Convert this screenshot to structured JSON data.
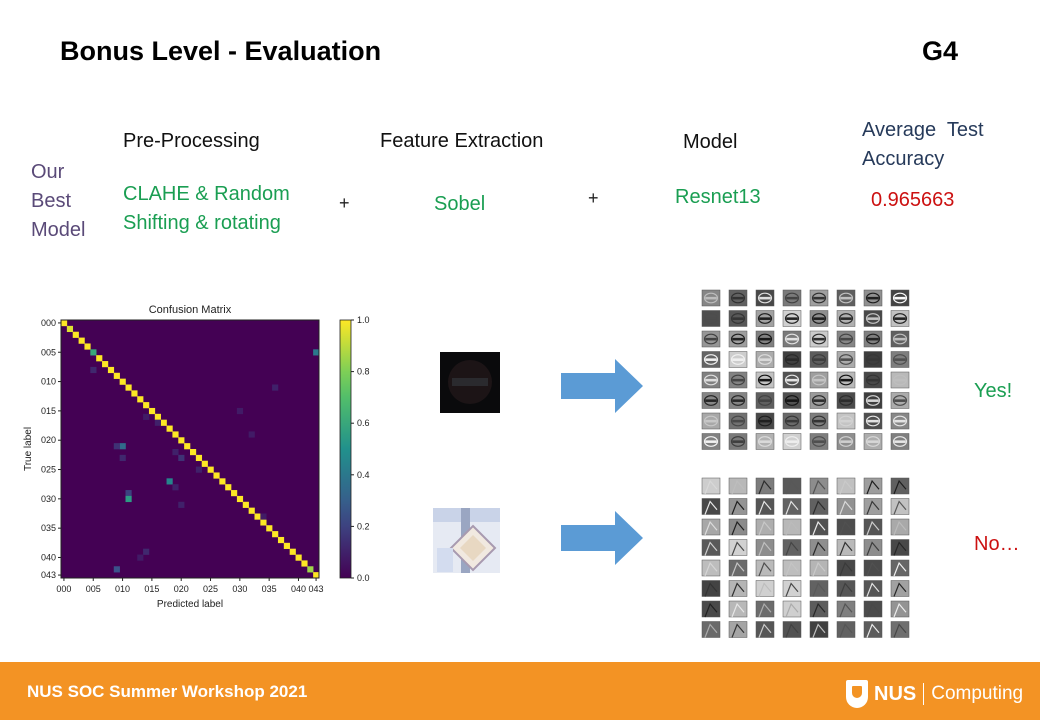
{
  "header": {
    "title": "Bonus Level - Evaluation",
    "group": "G4"
  },
  "best_model": {
    "label_lines": [
      "Our",
      "Best",
      "Model"
    ],
    "columns": {
      "preprocessing": {
        "header": "Pre-Processing",
        "value_lines": [
          "CLAHE & Random",
          "Shifting & rotating"
        ]
      },
      "feature_extraction": {
        "header": "Feature Extraction",
        "value": "Sobel"
      },
      "model": {
        "header": "Model",
        "value": "Resnet13"
      },
      "accuracy": {
        "header_lines": [
          "Average  Test",
          "Accuracy"
        ],
        "value": "0.965663"
      }
    },
    "plus": "+"
  },
  "results": {
    "yes": "Yes!",
    "no": "No…"
  },
  "chart_data": {
    "type": "heatmap",
    "title": "Confusion Matrix",
    "xlabel": "Predicted label",
    "ylabel": "True label",
    "n_classes": 44,
    "x_ticks": [
      "000",
      "005",
      "010",
      "015",
      "020",
      "025",
      "030",
      "035",
      "040",
      "043"
    ],
    "y_ticks": [
      "000",
      "005",
      "010",
      "015",
      "020",
      "025",
      "030",
      "035",
      "040",
      "043"
    ],
    "colorbar_ticks": [
      "0.0",
      "0.2",
      "0.4",
      "0.6",
      "0.8",
      "1.0"
    ],
    "value_range": [
      0,
      1
    ],
    "colormap": "viridis",
    "diagonal": [
      1.0,
      0.95,
      1.0,
      1.0,
      1.0,
      0.6,
      1.0,
      1.0,
      1.0,
      1.0,
      1.0,
      1.0,
      1.0,
      1.0,
      1.0,
      1.0,
      1.0,
      1.0,
      1.0,
      1.0,
      1.0,
      1.0,
      1.0,
      1.0,
      1.0,
      1.0,
      1.0,
      1.0,
      1.0,
      1.0,
      1.0,
      1.0,
      1.0,
      1.0,
      1.0,
      1.0,
      1.0,
      1.0,
      1.0,
      1.0,
      1.0,
      1.0,
      0.85,
      1.0
    ],
    "off_diagonal": [
      {
        "row": 5,
        "col": 43,
        "value": 0.4
      },
      {
        "row": 8,
        "col": 5,
        "value": 0.12
      },
      {
        "row": 11,
        "col": 36,
        "value": 0.1
      },
      {
        "row": 16,
        "col": 14,
        "value": 0.08
      },
      {
        "row": 17,
        "col": 16,
        "value": 0.1
      },
      {
        "row": 15,
        "col": 30,
        "value": 0.08
      },
      {
        "row": 19,
        "col": 32,
        "value": 0.08
      },
      {
        "row": 21,
        "col": 10,
        "value": 0.35
      },
      {
        "row": 21,
        "col": 9,
        "value": 0.15
      },
      {
        "row": 22,
        "col": 19,
        "value": 0.1
      },
      {
        "row": 23,
        "col": 10,
        "value": 0.12
      },
      {
        "row": 23,
        "col": 20,
        "value": 0.15
      },
      {
        "row": 25,
        "col": 23,
        "value": 0.1
      },
      {
        "row": 27,
        "col": 18,
        "value": 0.45
      },
      {
        "row": 28,
        "col": 19,
        "value": 0.1
      },
      {
        "row": 29,
        "col": 11,
        "value": 0.2
      },
      {
        "row": 30,
        "col": 11,
        "value": 0.55
      },
      {
        "row": 31,
        "col": 20,
        "value": 0.1
      },
      {
        "row": 33,
        "col": 34,
        "value": 0.08
      },
      {
        "row": 39,
        "col": 14,
        "value": 0.12
      },
      {
        "row": 40,
        "col": 13,
        "value": 0.08
      },
      {
        "row": 42,
        "col": 9,
        "value": 0.25
      }
    ]
  },
  "visuals": {
    "arrow_color": "#5b9bd5"
  },
  "footer": {
    "text": "NUS SOC Summer Workshop 2021",
    "logo_nus": "NUS",
    "logo_computing": "Computing"
  }
}
